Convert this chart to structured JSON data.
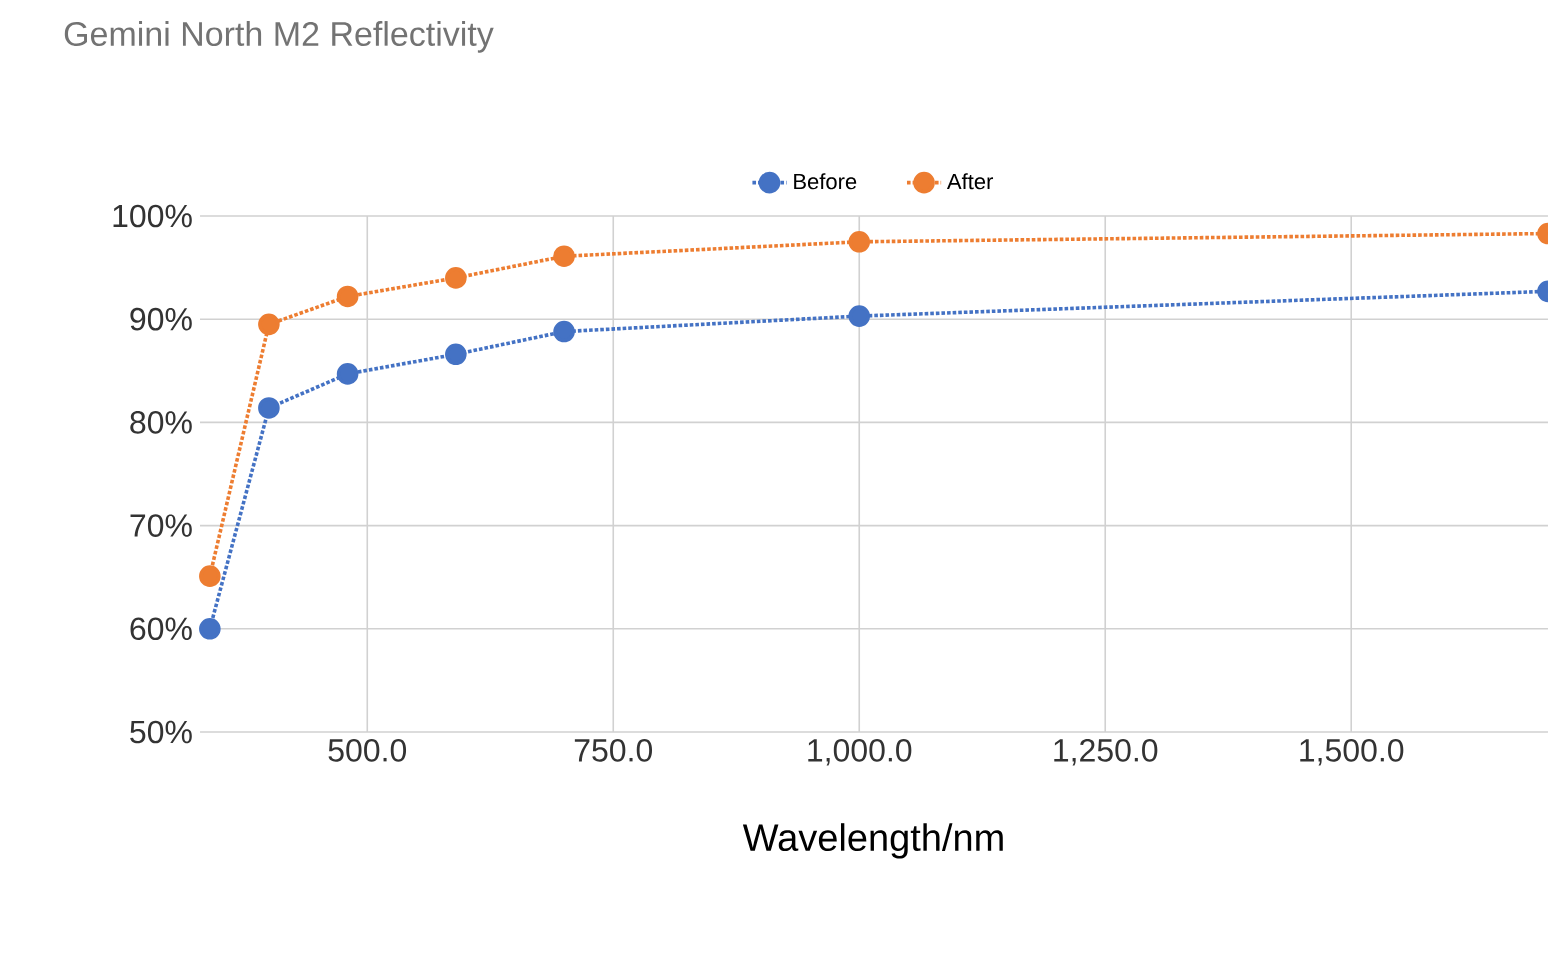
{
  "chart_data": {
    "type": "line",
    "title": "Gemini North M2 Reflectivity",
    "xlabel": "Wavelength/nm",
    "x": [
      340,
      400,
      480,
      590,
      700,
      1000,
      1700
    ],
    "series": [
      {
        "name": "Before",
        "color": "#4472c4",
        "values": [
          60,
          81.4,
          84.7,
          86.6,
          88.8,
          90.3,
          92.7
        ]
      },
      {
        "name": "After",
        "color": "#ed7d31",
        "values": [
          65.1,
          89.5,
          92.2,
          94.0,
          96.1,
          97.5,
          98.3
        ]
      }
    ],
    "xlim": [
      330,
      1700
    ],
    "xticks": [
      {
        "value": 500,
        "label": "500.0"
      },
      {
        "value": 750,
        "label": "750.0"
      },
      {
        "value": 1000,
        "label": "1,000.0"
      },
      {
        "value": 1250,
        "label": "1,250.0"
      },
      {
        "value": 1500,
        "label": "1,500.0"
      }
    ],
    "ylim": [
      50,
      100
    ],
    "yticks": [
      {
        "value": 50,
        "label": "50%"
      },
      {
        "value": 60,
        "label": "60%"
      },
      {
        "value": 70,
        "label": "70%"
      },
      {
        "value": 80,
        "label": "80%"
      },
      {
        "value": 90,
        "label": "90%"
      },
      {
        "value": 100,
        "label": "100%"
      }
    ],
    "grid": true,
    "legend": "top",
    "marker": "circle",
    "line_style": "dotted"
  }
}
